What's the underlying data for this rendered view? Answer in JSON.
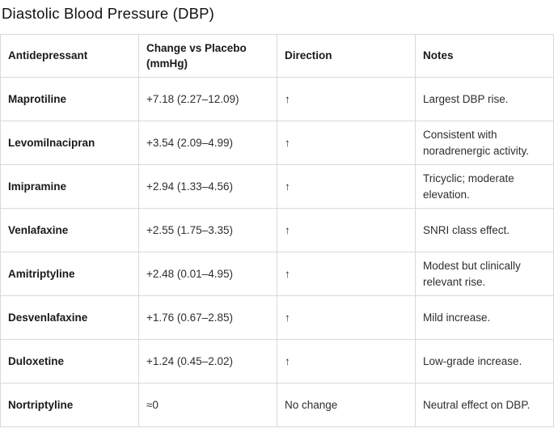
{
  "title": "Diastolic Blood Pressure (DBP)",
  "colors": {
    "table_border": "#d9d9d9",
    "header_text": "#1a1a1a",
    "body_text": "#2e2e2e",
    "background": "#ffffff"
  },
  "table": {
    "columns": {
      "antidepressant": "Antidepressant",
      "change": "Change vs Placebo (mmHg)",
      "direction": "Direction",
      "notes": "Notes"
    },
    "rows": [
      {
        "drug": "Maprotiline",
        "change": "+7.18 (2.27–12.09)",
        "direction": "↑",
        "notes": "Largest DBP rise."
      },
      {
        "drug": "Levomilnacipran",
        "change": "+3.54 (2.09–4.99)",
        "direction": "↑",
        "notes": "Consistent with noradrenergic activity."
      },
      {
        "drug": "Imipramine",
        "change": "+2.94 (1.33–4.56)",
        "direction": "↑",
        "notes": "Tricyclic; moderate elevation."
      },
      {
        "drug": "Venlafaxine",
        "change": "+2.55 (1.75–3.35)",
        "direction": "↑",
        "notes": "SNRI class effect."
      },
      {
        "drug": "Amitriptyline",
        "change": "+2.48 (0.01–4.95)",
        "direction": "↑",
        "notes": "Modest but clinically relevant rise."
      },
      {
        "drug": "Desvenlafaxine",
        "change": "+1.76 (0.67–2.85)",
        "direction": "↑",
        "notes": "Mild increase."
      },
      {
        "drug": "Duloxetine",
        "change": "+1.24 (0.45–2.02)",
        "direction": "↑",
        "notes": "Low-grade increase."
      },
      {
        "drug": "Nortriptyline",
        "change": "≈0",
        "direction": "No change",
        "notes": "Neutral effect on DBP."
      }
    ]
  }
}
